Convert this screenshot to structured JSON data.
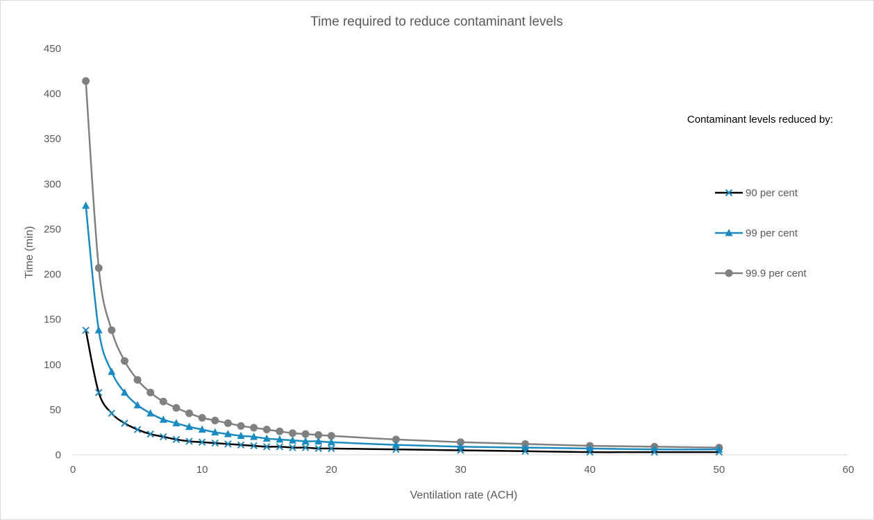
{
  "chart_data": {
    "type": "line",
    "title": "Time required to reduce contaminant levels",
    "xlabel": "Ventilation rate (ACH)",
    "ylabel": "Time (min)",
    "xlim": [
      0,
      60
    ],
    "ylim": [
      0,
      450
    ],
    "x_ticks": [
      "0",
      "10",
      "20",
      "30",
      "40",
      "50",
      "60"
    ],
    "y_ticks": [
      "0",
      "50",
      "100",
      "150",
      "200",
      "250",
      "300",
      "350",
      "400",
      "450"
    ],
    "grid": false,
    "legend_title": "Contaminant levels reduced by:",
    "legend_position": "right",
    "x": [
      1,
      2,
      3,
      4,
      5,
      6,
      7,
      8,
      9,
      10,
      11,
      12,
      13,
      14,
      15,
      16,
      17,
      18,
      19,
      20,
      25,
      30,
      35,
      40,
      45,
      50
    ],
    "series": [
      {
        "name": "90 per cent",
        "color": "#000000",
        "marker_color": "#1f87b8",
        "marker": "x",
        "values": [
          138,
          69,
          46,
          35,
          28,
          23,
          20,
          17,
          15,
          14,
          13,
          12,
          11,
          10,
          9,
          9,
          8,
          8,
          7,
          7,
          6,
          5,
          4,
          3,
          3,
          3
        ]
      },
      {
        "name": "99 per cent",
        "color": "#1a8ac0",
        "marker_color": "#1a8ac0",
        "marker": "triangle",
        "values": [
          276,
          138,
          92,
          69,
          55,
          46,
          39,
          35,
          31,
          28,
          25,
          23,
          21,
          20,
          18,
          17,
          16,
          15,
          15,
          14,
          11,
          9,
          8,
          7,
          6,
          6
        ]
      },
      {
        "name": "99.9 per cent",
        "color": "#808080",
        "marker_color": "#808080",
        "marker": "circle",
        "values": [
          414,
          207,
          138,
          104,
          83,
          69,
          59,
          52,
          46,
          41,
          38,
          35,
          32,
          30,
          28,
          26,
          24,
          23,
          22,
          21,
          17,
          14,
          12,
          10,
          9,
          8
        ]
      }
    ]
  }
}
